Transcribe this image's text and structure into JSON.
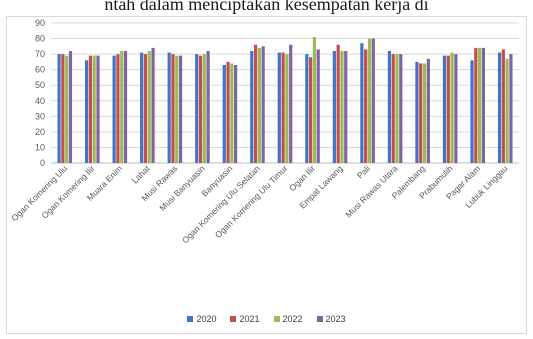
{
  "header": {
    "partial_text": "ntah dalam menciptakan kesempatan kerja di"
  },
  "chart_data": {
    "type": "bar",
    "categories": [
      "Ogan Komering Ulu",
      "Ogan Komering Ilir",
      "Muara Enim",
      "Lahat",
      "Musi Rawas",
      "Musi Banyuasin",
      "Banyuasin",
      "Ogan Komering Ulu Selatan",
      "Ogan Komering Ulu Timur",
      "Ogan Ilir",
      "Empat Lawang",
      "Pali",
      "Musi Rawas Utara",
      "Palembang",
      "Prabumulih",
      "Pagar Alam",
      "Lubuk Linggau"
    ],
    "series": [
      {
        "name": "2020",
        "color": "#4472c4",
        "values": [
          70,
          66,
          69,
          71,
          71,
          70,
          63,
          72,
          71,
          70,
          72,
          77,
          72,
          65,
          69,
          66,
          71
        ]
      },
      {
        "name": "2021",
        "color": "#c0504d",
        "values": [
          70,
          69,
          70,
          70,
          70,
          69,
          65,
          76,
          71,
          68,
          76,
          73,
          70,
          64,
          69,
          74,
          73
        ]
      },
      {
        "name": "2022",
        "color": "#9bbb59",
        "values": [
          69,
          69,
          72,
          72,
          69,
          70,
          64,
          74,
          70,
          81,
          72,
          80,
          70,
          64,
          71,
          74,
          67
        ]
      },
      {
        "name": "2023",
        "color": "#8064a2",
        "values": [
          72,
          69,
          72,
          74,
          69,
          72,
          63,
          75,
          76,
          73,
          72,
          80,
          70,
          67,
          70,
          74,
          70
        ]
      }
    ],
    "ylim": [
      0,
      90
    ],
    "yticks": [
      0,
      10,
      20,
      30,
      40,
      50,
      60,
      70,
      80,
      90
    ],
    "grid": true,
    "legend_position": "bottom",
    "title": "",
    "xlabel": "",
    "ylabel": ""
  }
}
